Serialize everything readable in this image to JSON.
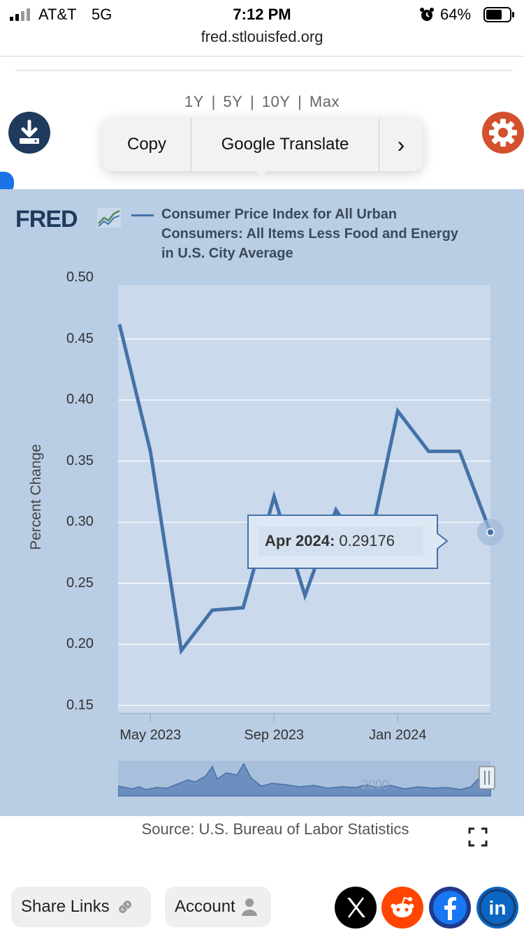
{
  "status_bar": {
    "carrier": "AT&T",
    "network": "5G",
    "time": "7:12 PM",
    "battery_pct": "64%",
    "url": "fred.stlouisfed.org"
  },
  "range_selector": {
    "options": [
      "1Y",
      "5Y",
      "10Y",
      "Max"
    ],
    "separator": "|"
  },
  "context_menu": {
    "copy": "Copy",
    "translate": "Google Translate",
    "more": "›"
  },
  "graph": {
    "logo": "FRED",
    "legend": "Consumer Price Index for All Urban Consumers: All Items Less Food and Energy in U.S. City Average",
    "series_color": "#4472a8",
    "tooltip": {
      "date": "Apr 2024:",
      "value": "0.29176"
    },
    "source": "Source: U.S. Bureau of Labor Statistics"
  },
  "chart_data": {
    "type": "line",
    "ylabel": "Percent Change",
    "ylim": [
      0.15,
      0.5
    ],
    "yticks": [
      "0.50",
      "0.45",
      "0.40",
      "0.35",
      "0.30",
      "0.25",
      "0.20",
      "0.15"
    ],
    "xticks": [
      "May 2023",
      "Sep 2023",
      "Jan 2024"
    ],
    "x": [
      "2023-04",
      "2023-05",
      "2023-06",
      "2023-07",
      "2023-08",
      "2023-09",
      "2023-10",
      "2023-11",
      "2023-12",
      "2024-01",
      "2024-02",
      "2024-03",
      "2024-04"
    ],
    "series": [
      {
        "values": [
          0.462,
          0.358,
          0.195,
          0.228,
          0.23,
          0.321,
          0.24,
          0.31,
          0.272,
          0.391,
          0.358,
          0.358,
          0.29176
        ]
      }
    ],
    "grid": true
  },
  "footer": {
    "share_links": "Share Links",
    "account": "Account"
  },
  "social": [
    "x-icon",
    "reddit-icon",
    "facebook-icon",
    "linkedin-icon"
  ]
}
